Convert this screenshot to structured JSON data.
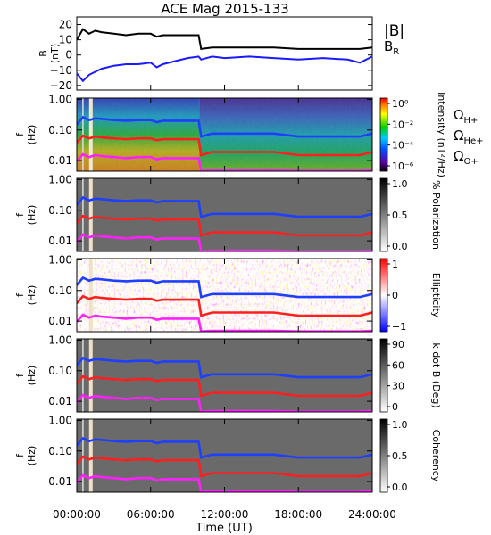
{
  "title": "ACE Mag 2015-133",
  "colors": {
    "B_total": "#000000",
    "B_R": "#1a1aff",
    "omega_H": "#1f3fff",
    "omega_He": "#ff1f1f",
    "omega_O": "#ff1fff"
  },
  "chart_data": [
    {
      "type": "line",
      "panel": "magnetic-field",
      "ylabel": "B (nT)",
      "ylim": [
        -23,
        25
      ],
      "yticks": [
        "20",
        "10",
        "0",
        "−10",
        "−20"
      ],
      "ytick_values": [
        20,
        10,
        0,
        -10,
        -20
      ],
      "legend": [
        "|B|",
        "B_R"
      ],
      "x_hours": [
        0,
        0.5,
        1,
        1.5,
        2,
        3,
        4,
        5,
        6,
        6.5,
        7,
        8,
        9,
        9.9,
        10.1,
        11,
        12,
        14,
        16,
        18,
        20,
        22,
        23,
        24
      ],
      "series": [
        {
          "name": "|B|",
          "values": [
            10,
            17,
            14,
            16,
            15,
            14,
            13,
            14,
            14,
            12,
            13,
            13,
            13,
            13,
            4,
            5,
            5,
            5,
            5,
            4,
            4,
            4,
            4,
            5
          ]
        },
        {
          "name": "B_R",
          "values": [
            -12,
            -17,
            -13,
            -11,
            -9,
            -7,
            -6,
            -6,
            -5,
            -8,
            -6,
            -4,
            -2,
            -1,
            -3,
            -1,
            -2,
            -1,
            -2,
            -3,
            -2,
            -3,
            -5,
            -1
          ]
        }
      ]
    },
    {
      "type": "heatmap",
      "panel": "intensity",
      "ylabel": "f (Hz)",
      "cbar_label": "Intensity (nT²/Hz)",
      "cbar_ticks": [
        "10⁰",
        "10⁻²",
        "10⁻⁴",
        "10⁻⁶"
      ],
      "legend": [
        "Ω_H+",
        "Ω_He+",
        "Ω_O+"
      ]
    },
    {
      "type": "heatmap",
      "panel": "polarization",
      "ylabel": "f (Hz)",
      "cbar_label": "% Polarization",
      "cbar_ticks": [
        "1.0",
        "0.5",
        "0.0"
      ]
    },
    {
      "type": "heatmap",
      "panel": "ellipticity",
      "ylabel": "f (Hz)",
      "cbar_label": "Ellipticity",
      "cbar_ticks": [
        "1",
        "0",
        "−1"
      ]
    },
    {
      "type": "heatmap",
      "panel": "kdotb",
      "ylabel": "f (Hz)",
      "cbar_label": "k dot B (Deg)",
      "cbar_ticks": [
        "90",
        "60",
        "30",
        "0"
      ]
    },
    {
      "type": "heatmap",
      "panel": "coherency",
      "ylabel": "f (Hz)",
      "cbar_label": "Coherency",
      "cbar_ticks": [
        "1.0",
        "0.5",
        "0.0"
      ]
    }
  ],
  "spectrogram_axis": {
    "yticks": [
      "1.00",
      "0.10",
      "0.01"
    ],
    "ytick_values": [
      1.0,
      0.1,
      0.01
    ],
    "ylim": [
      0.0045,
      1.1
    ],
    "scale": "log"
  },
  "gyrofrequency_lines": {
    "x_hours": [
      0,
      0.5,
      1,
      1.5,
      2,
      3,
      4,
      5,
      6,
      6.5,
      7,
      8,
      9,
      9.9,
      10.1,
      11,
      12,
      14,
      16,
      18,
      20,
      22,
      23,
      24
    ],
    "series": [
      {
        "name": "Ω_H+",
        "values": [
          0.15,
          0.26,
          0.21,
          0.24,
          0.23,
          0.21,
          0.2,
          0.21,
          0.21,
          0.18,
          0.2,
          0.2,
          0.2,
          0.2,
          0.061,
          0.076,
          0.076,
          0.076,
          0.076,
          0.061,
          0.061,
          0.061,
          0.061,
          0.076
        ]
      },
      {
        "name": "Ω_He+",
        "values": [
          0.038,
          0.065,
          0.053,
          0.061,
          0.057,
          0.053,
          0.05,
          0.053,
          0.053,
          0.046,
          0.05,
          0.05,
          0.05,
          0.05,
          0.015,
          0.019,
          0.019,
          0.019,
          0.019,
          0.015,
          0.015,
          0.015,
          0.015,
          0.019
        ]
      },
      {
        "name": "Ω_O+",
        "values": [
          0.0095,
          0.016,
          0.013,
          0.015,
          0.014,
          0.013,
          0.012,
          0.013,
          0.013,
          0.011,
          0.012,
          0.012,
          0.012,
          0.012,
          0.0046,
          0.0048,
          0.0048,
          0.0048,
          0.0048,
          0.0046,
          0.0046,
          0.0046,
          0.0046,
          0.0048
        ]
      }
    ]
  },
  "x_axis": {
    "label": "Time (UT)",
    "xlim_hours": [
      0,
      24
    ],
    "ticks": [
      "00:00:00",
      "06:00:00",
      "12:00:00",
      "18:00:00",
      "24:00:00"
    ],
    "tick_values_hours": [
      0,
      6,
      12,
      18,
      24
    ]
  }
}
